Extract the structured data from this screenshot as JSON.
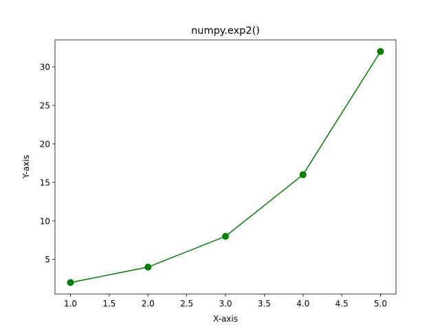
{
  "chart_data": {
    "type": "line",
    "title": "numpy.exp2()",
    "xlabel": "X-axis",
    "ylabel": "Y-axis",
    "x": [
      1.0,
      2.0,
      3.0,
      4.0,
      5.0
    ],
    "series": [
      {
        "values": [
          2,
          4,
          8,
          16,
          32
        ],
        "color": "#008000",
        "marker": "circle"
      }
    ],
    "xlim": [
      0.8,
      5.2
    ],
    "ylim": [
      0.5,
      33.5
    ],
    "xticks": [
      1.0,
      1.5,
      2.0,
      2.5,
      3.0,
      3.5,
      4.0,
      4.5,
      5.0
    ],
    "xtick_labels": [
      "1.0",
      "1.5",
      "2.0",
      "2.5",
      "3.0",
      "3.5",
      "4.0",
      "4.5",
      "5.0"
    ],
    "yticks": [
      5,
      10,
      15,
      20,
      25,
      30
    ],
    "ytick_labels": [
      "5",
      "10",
      "15",
      "20",
      "25",
      "30"
    ],
    "grid": false,
    "legend": false
  }
}
